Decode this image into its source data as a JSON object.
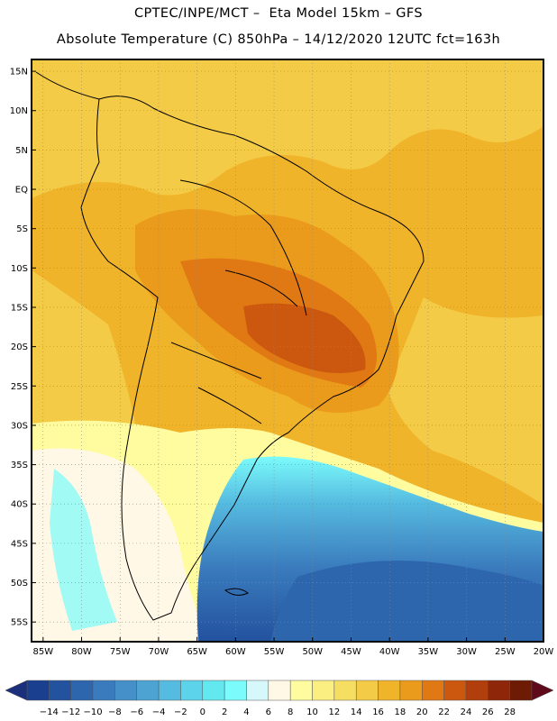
{
  "header": {
    "line1": "CPTEC/INPE/MCT –  Eta Model 15km – GFS",
    "line2": "Absolute Temperature (C) 850hPa – 14/12/2020 12UTC fct=163h"
  },
  "map": {
    "latitude_labels": [
      "15N",
      "10N",
      "5N",
      "EQ",
      "5S",
      "10S",
      "15S",
      "20S",
      "25S",
      "30S",
      "35S",
      "40S",
      "45S",
      "50S",
      "55S"
    ],
    "longitude_labels": [
      "85W",
      "80W",
      "75W",
      "70W",
      "65W",
      "60W",
      "55W",
      "50W",
      "45W",
      "40W",
      "35W",
      "30W",
      "25W",
      "20W"
    ],
    "lat_range_deg": [
      -57.5,
      16.5
    ],
    "lon_range_deg": [
      -86.5,
      -20.0
    ]
  },
  "colorbar": {
    "tick_labels": [
      "-14",
      "-12",
      "-10",
      "-8",
      "-6",
      "-4",
      "-2",
      "0",
      "2",
      "4",
      "6",
      "8",
      "10",
      "12",
      "14",
      "16",
      "18",
      "20",
      "22",
      "24",
      "26",
      "28"
    ],
    "colors": [
      "#1b3f8f",
      "#23529e",
      "#2d66ad",
      "#3a7bbd",
      "#4590c8",
      "#4da4d3",
      "#56bbe0",
      "#5cd3ea",
      "#63e8f0",
      "#7bfbfb",
      "#d6f8fb",
      "#fff8e6",
      "#fffca0",
      "#fbef82",
      "#f6de62",
      "#f3cb46",
      "#f0b42b",
      "#ea9b1c",
      "#e07914",
      "#cc5810",
      "#b13f0d",
      "#8e2709",
      "#6e1b06"
    ]
  }
}
